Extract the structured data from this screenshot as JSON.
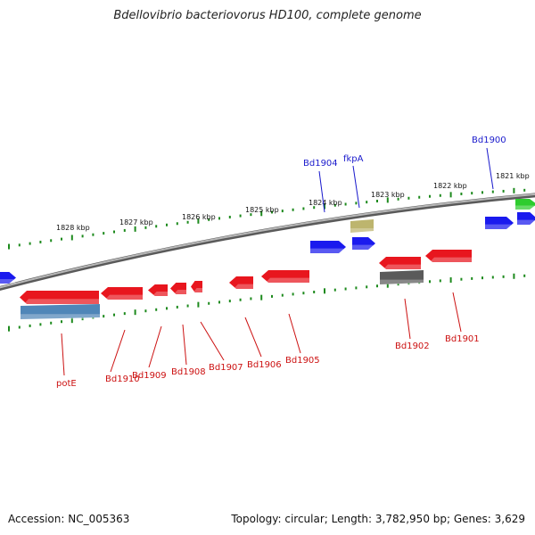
{
  "title": "Bdellovibrio bacteriovorus HD100, complete genome",
  "footer": {
    "accession": "Accession: NC_005363",
    "stats": "Topology: circular; Length: 3,782,950 bp; Genes: 3,629"
  },
  "colors": {
    "backbone": "#8a8a8a",
    "ruler": "#1d8a1d",
    "forward_label": "#1a1acc",
    "reverse_label": "#cc1111",
    "red_gene": "#e8161e",
    "blue_gene": "#1a1aee",
    "green_gene": "#2ecc2e",
    "olive_gene": "#bdb56e",
    "steel_gene": "#4f86b8",
    "gray_gene": "#5a5a5a"
  },
  "outer_ruler_labels": [
    "1821 kbp",
    "1822 kbp",
    "1823 kbp",
    "1824 kbp",
    "1825 kbp",
    "1826 kbp",
    "1827 kbp",
    "1828 kbp"
  ],
  "forward_labels": [
    "Bd1900",
    "fkpA",
    "Bd1904"
  ],
  "reverse_labels": [
    "Bd1901",
    "Bd1902",
    "Bd1905",
    "Bd1906",
    "Bd1907",
    "Bd1908",
    "Bd1909",
    "Bd1910",
    "potE"
  ]
}
